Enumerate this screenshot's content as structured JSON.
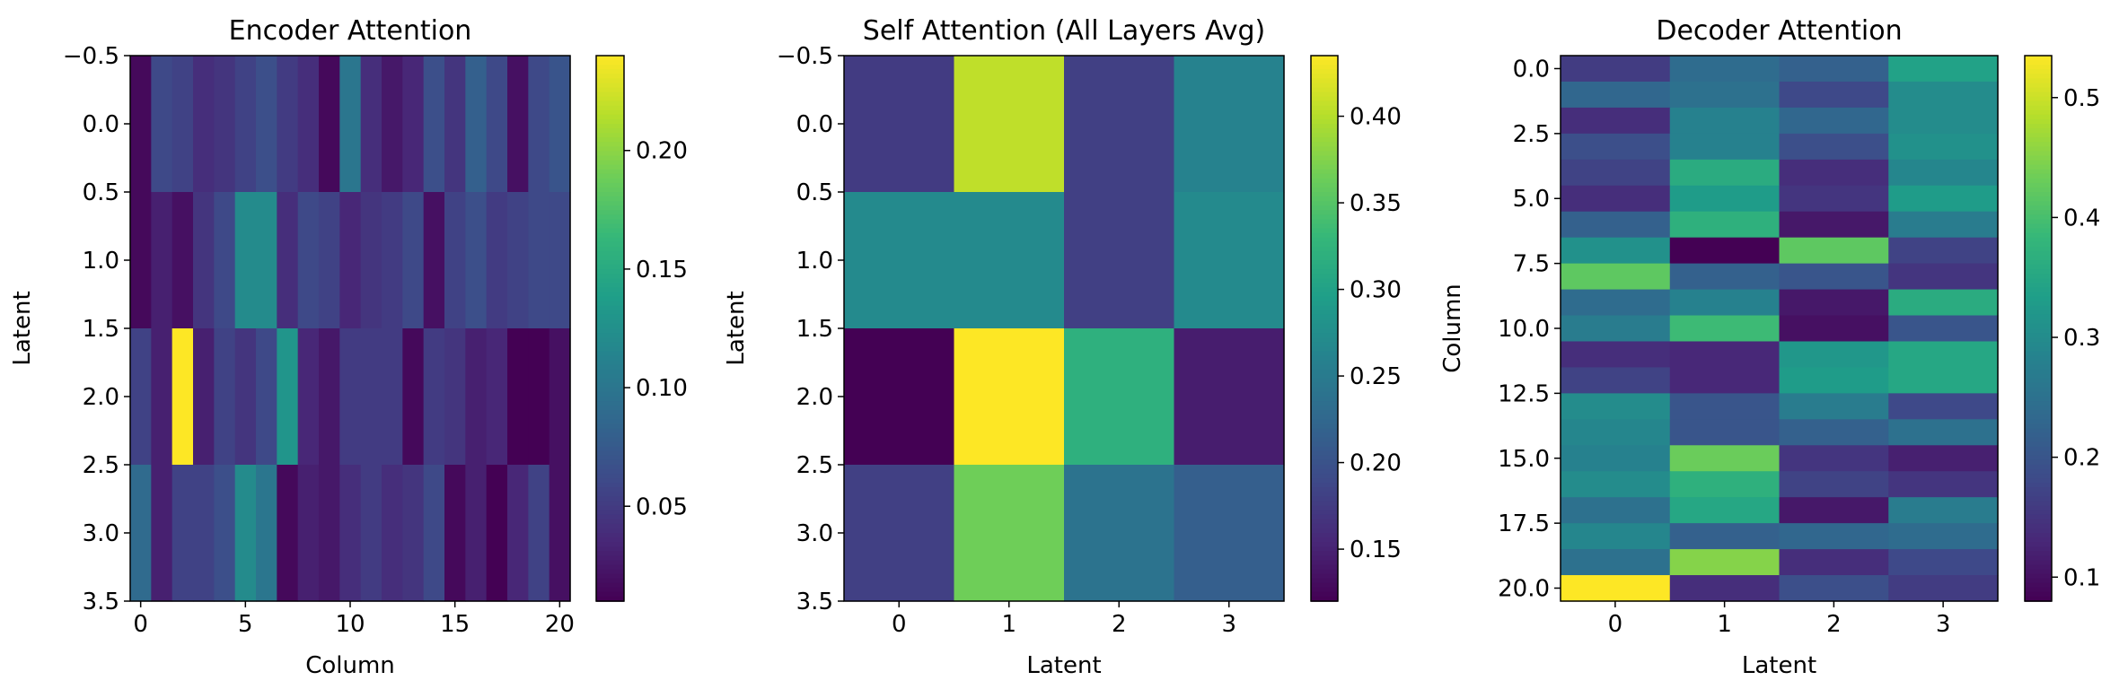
{
  "chart_data": [
    {
      "type": "heatmap",
      "title": "Encoder Attention",
      "xlabel": "Column",
      "ylabel": "Latent",
      "colormap": "viridis",
      "n_rows": 4,
      "n_cols": 21,
      "xlim": [
        -0.5,
        20.5
      ],
      "ylim": [
        3.5,
        -0.5
      ],
      "xticks": [
        "0",
        "5",
        "10",
        "15",
        "20"
      ],
      "xtick_values": [
        0,
        5,
        10,
        15,
        20
      ],
      "yticks": [
        "−0.5",
        "0.0",
        "0.5",
        "1.0",
        "1.5",
        "2.0",
        "2.5",
        "3.0",
        "3.5"
      ],
      "ytick_values": [
        -0.5,
        0.0,
        0.5,
        1.0,
        1.5,
        2.0,
        2.5,
        3.0,
        3.5
      ],
      "colorbar": {
        "vmin": 0.01,
        "vmax": 0.24,
        "ticks": [
          "0.05",
          "0.10",
          "0.15",
          "0.20"
        ],
        "tick_values": [
          0.05,
          0.1,
          0.15,
          0.2
        ]
      },
      "values": [
        [
          0.015,
          0.06,
          0.055,
          0.04,
          0.045,
          0.055,
          0.065,
          0.05,
          0.04,
          0.015,
          0.1,
          0.04,
          0.025,
          0.035,
          0.065,
          0.045,
          0.08,
          0.06,
          0.02,
          0.06,
          0.07
        ],
        [
          0.015,
          0.03,
          0.02,
          0.045,
          0.06,
          0.12,
          0.12,
          0.04,
          0.06,
          0.055,
          0.035,
          0.045,
          0.05,
          0.06,
          0.02,
          0.055,
          0.065,
          0.05,
          0.055,
          0.06,
          0.06
        ],
        [
          0.055,
          0.03,
          0.24,
          0.03,
          0.055,
          0.045,
          0.06,
          0.13,
          0.035,
          0.025,
          0.05,
          0.05,
          0.05,
          0.015,
          0.05,
          0.045,
          0.03,
          0.035,
          0.01,
          0.01,
          0.02
        ],
        [
          0.09,
          0.03,
          0.055,
          0.055,
          0.065,
          0.12,
          0.1,
          0.015,
          0.03,
          0.025,
          0.04,
          0.05,
          0.04,
          0.045,
          0.06,
          0.015,
          0.03,
          0.01,
          0.035,
          0.055,
          0.02
        ]
      ]
    },
    {
      "type": "heatmap",
      "title": "Self Attention (All Layers Avg)",
      "xlabel": "Latent",
      "ylabel": "Latent",
      "colormap": "viridis",
      "n_rows": 4,
      "n_cols": 4,
      "xlim": [
        -0.5,
        3.5
      ],
      "ylim": [
        3.5,
        -0.5
      ],
      "xticks": [
        "0",
        "1",
        "2",
        "3"
      ],
      "xtick_values": [
        0,
        1,
        2,
        3
      ],
      "yticks": [
        "−0.5",
        "0.0",
        "0.5",
        "1.0",
        "1.5",
        "2.0",
        "2.5",
        "3.0",
        "3.5"
      ],
      "ytick_values": [
        -0.5,
        0.0,
        0.5,
        1.0,
        1.5,
        2.0,
        2.5,
        3.0,
        3.5
      ],
      "colorbar": {
        "vmin": 0.12,
        "vmax": 0.435,
        "ticks": [
          "0.15",
          "0.20",
          "0.25",
          "0.30",
          "0.35",
          "0.40"
        ],
        "tick_values": [
          0.15,
          0.2,
          0.25,
          0.3,
          0.35,
          0.4
        ]
      },
      "values": [
        [
          0.175,
          0.405,
          0.18,
          0.26
        ],
        [
          0.27,
          0.27,
          0.18,
          0.27
        ],
        [
          0.12,
          0.435,
          0.32,
          0.145
        ],
        [
          0.18,
          0.365,
          0.24,
          0.215
        ]
      ]
    },
    {
      "type": "heatmap",
      "title": "Decoder Attention",
      "xlabel": "Latent",
      "ylabel": "Column",
      "colormap": "viridis",
      "n_rows": 21,
      "n_cols": 4,
      "xlim": [
        -0.5,
        3.5
      ],
      "ylim": [
        20.5,
        -0.5
      ],
      "xticks": [
        "0",
        "1",
        "2",
        "3"
      ],
      "xtick_values": [
        0,
        1,
        2,
        3
      ],
      "yticks": [
        "0.0",
        "2.5",
        "5.0",
        "7.5",
        "10.0",
        "12.5",
        "15.0",
        "17.5",
        "20.0"
      ],
      "ytick_values": [
        0.0,
        2.5,
        5.0,
        7.5,
        10.0,
        12.5,
        15.0,
        17.5,
        20.0
      ],
      "colorbar": {
        "vmin": 0.08,
        "vmax": 0.535,
        "ticks": [
          "0.1",
          "0.2",
          "0.3",
          "0.4",
          "0.5"
        ],
        "tick_values": [
          0.1,
          0.2,
          0.3,
          0.4,
          0.5
        ]
      },
      "values": [
        [
          0.16,
          0.24,
          0.22,
          0.34
        ],
        [
          0.23,
          0.25,
          0.18,
          0.3
        ],
        [
          0.14,
          0.28,
          0.23,
          0.3
        ],
        [
          0.19,
          0.28,
          0.19,
          0.31
        ],
        [
          0.17,
          0.36,
          0.14,
          0.29
        ],
        [
          0.14,
          0.33,
          0.15,
          0.33
        ],
        [
          0.22,
          0.37,
          0.11,
          0.27
        ],
        [
          0.31,
          0.08,
          0.42,
          0.17
        ],
        [
          0.42,
          0.22,
          0.2,
          0.15
        ],
        [
          0.24,
          0.28,
          0.11,
          0.36
        ],
        [
          0.27,
          0.39,
          0.1,
          0.2
        ],
        [
          0.14,
          0.13,
          0.32,
          0.35
        ],
        [
          0.17,
          0.13,
          0.33,
          0.35
        ],
        [
          0.3,
          0.2,
          0.27,
          0.18
        ],
        [
          0.29,
          0.2,
          0.22,
          0.25
        ],
        [
          0.28,
          0.43,
          0.15,
          0.12
        ],
        [
          0.3,
          0.37,
          0.17,
          0.15
        ],
        [
          0.25,
          0.35,
          0.11,
          0.27
        ],
        [
          0.29,
          0.22,
          0.23,
          0.24
        ],
        [
          0.25,
          0.45,
          0.14,
          0.18
        ],
        [
          0.535,
          0.14,
          0.19,
          0.16
        ]
      ]
    }
  ]
}
